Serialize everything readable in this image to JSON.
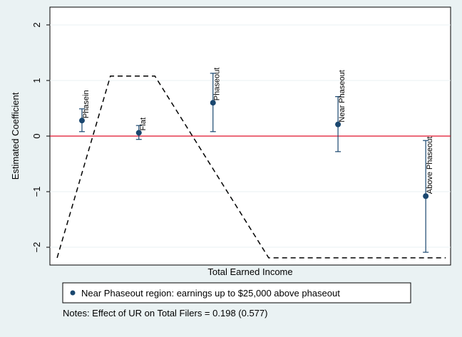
{
  "chart_data": {
    "type": "coefplot",
    "y_label": "Estimated Coefficient",
    "x_label": "Total Earned Income",
    "xlim": [
      0,
      100
    ],
    "ylim": [
      -2.32,
      2.32
    ],
    "yticks": [
      {
        "value": -2,
        "label": "−2"
      },
      {
        "value": -1,
        "label": "−1"
      },
      0,
      1,
      2
    ],
    "grid": true,
    "yline": 0,
    "yline_color": "#e0102a",
    "series": [
      {
        "name": "Near Phaseout region: earnings up to $25,000 above phaseout",
        "color": "#1a476f",
        "labels": [
          "Phasein",
          "Flat",
          "Phaseout",
          "Near Phaseout",
          "Above Phaseout"
        ],
        "x": [
          8.0,
          22.2,
          40.7,
          71.9,
          93.8
        ],
        "values": [
          0.28,
          0.06,
          0.6,
          0.21,
          -1.08
        ],
        "ci_low": [
          0.08,
          -0.06,
          0.08,
          -0.28,
          -2.09
        ],
        "ci_high": [
          0.49,
          0.19,
          1.13,
          0.71,
          -0.08
        ]
      }
    ],
    "schedule": {
      "x": [
        1.8,
        15.1,
        26.2,
        54.6,
        98.8
      ],
      "values": [
        -2.19,
        1.08,
        1.08,
        -2.19,
        -2.19
      ],
      "color": "#000000"
    },
    "note": "Notes: Effect of UR on Total Filers = 0.198 (0.577)"
  }
}
